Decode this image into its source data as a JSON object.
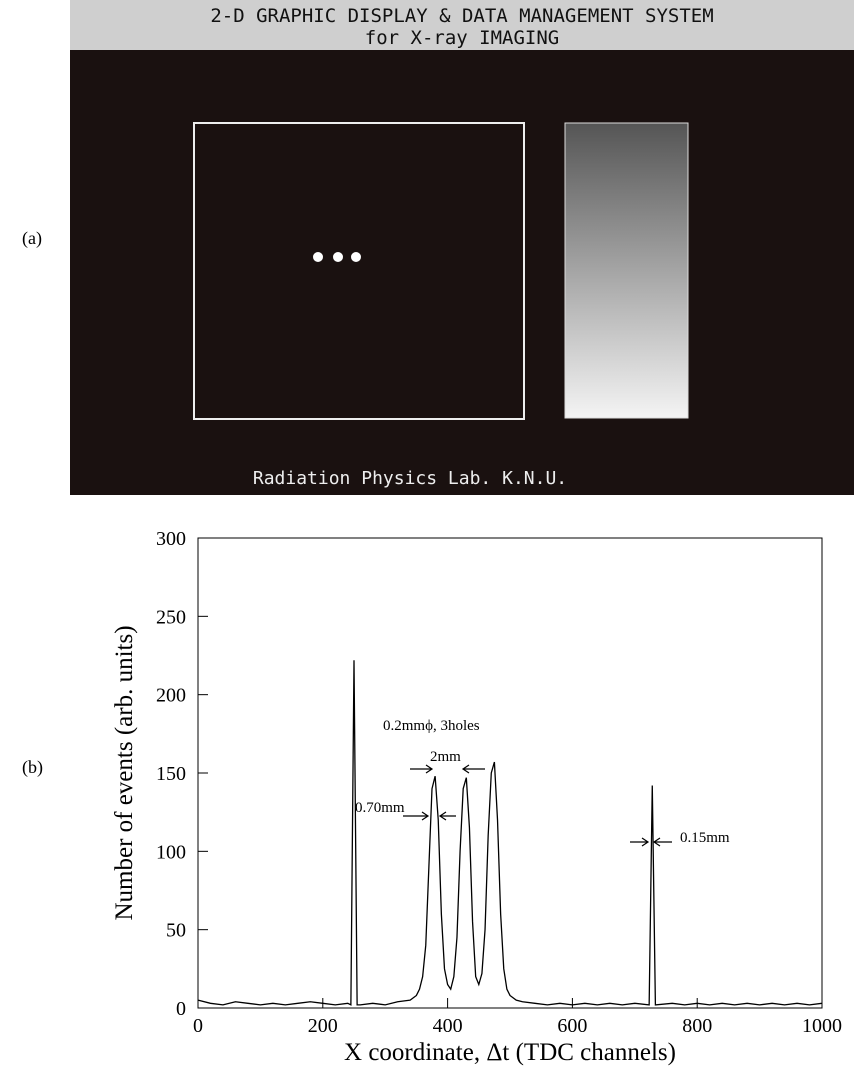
{
  "panel_a": {
    "label": "(a)",
    "header": [
      "2-D GRAPHIC DISPLAY & DATA MANAGEMENT SYSTEM",
      "for X-ray IMAGING"
    ],
    "footer": "Radiation Physics Lab. K.N.U."
  },
  "panel_b": {
    "label": "(b)"
  },
  "chart_data": {
    "type": "line",
    "x_label": "X coordinate, Δt (TDC channels)",
    "y_label": "Number of events (arb. units)",
    "x": [
      0,
      20,
      40,
      60,
      80,
      100,
      120,
      140,
      160,
      180,
      200,
      220,
      240,
      245,
      250,
      255,
      260,
      280,
      300,
      320,
      340,
      350,
      355,
      360,
      365,
      370,
      375,
      380,
      385,
      390,
      395,
      400,
      405,
      410,
      415,
      420,
      425,
      430,
      435,
      440,
      445,
      450,
      455,
      460,
      465,
      470,
      475,
      480,
      485,
      490,
      495,
      500,
      510,
      520,
      540,
      560,
      580,
      600,
      620,
      640,
      660,
      680,
      700,
      723,
      728,
      733,
      760,
      780,
      800,
      820,
      840,
      860,
      880,
      900,
      920,
      940,
      960,
      980,
      1000
    ],
    "series": [
      {
        "color": "#000000",
        "values": [
          5,
          3,
          2,
          4,
          3,
          2,
          3,
          2,
          3,
          4,
          3,
          2,
          3,
          2,
          222,
          2,
          2,
          3,
          2,
          4,
          5,
          8,
          12,
          20,
          40,
          90,
          140,
          148,
          120,
          60,
          25,
          15,
          12,
          20,
          45,
          100,
          140,
          147,
          115,
          55,
          20,
          15,
          22,
          50,
          110,
          150,
          157,
          120,
          60,
          25,
          12,
          8,
          5,
          4,
          3,
          2,
          3,
          2,
          3,
          2,
          3,
          2,
          3,
          2,
          142,
          2,
          3,
          2,
          3,
          2,
          3,
          2,
          3,
          2,
          3,
          2,
          3,
          2,
          3
        ]
      }
    ],
    "xlim": [
      0,
      1000
    ],
    "ylim": [
      0,
      300
    ],
    "xticks": [
      0,
      200,
      400,
      600,
      800,
      1000
    ],
    "yticks": [
      0,
      50,
      100,
      150,
      200,
      250,
      300
    ],
    "annotations": [
      "0.2mmϕ, 3holes",
      "2mm",
      "0.70mm",
      "0.15mm"
    ]
  }
}
